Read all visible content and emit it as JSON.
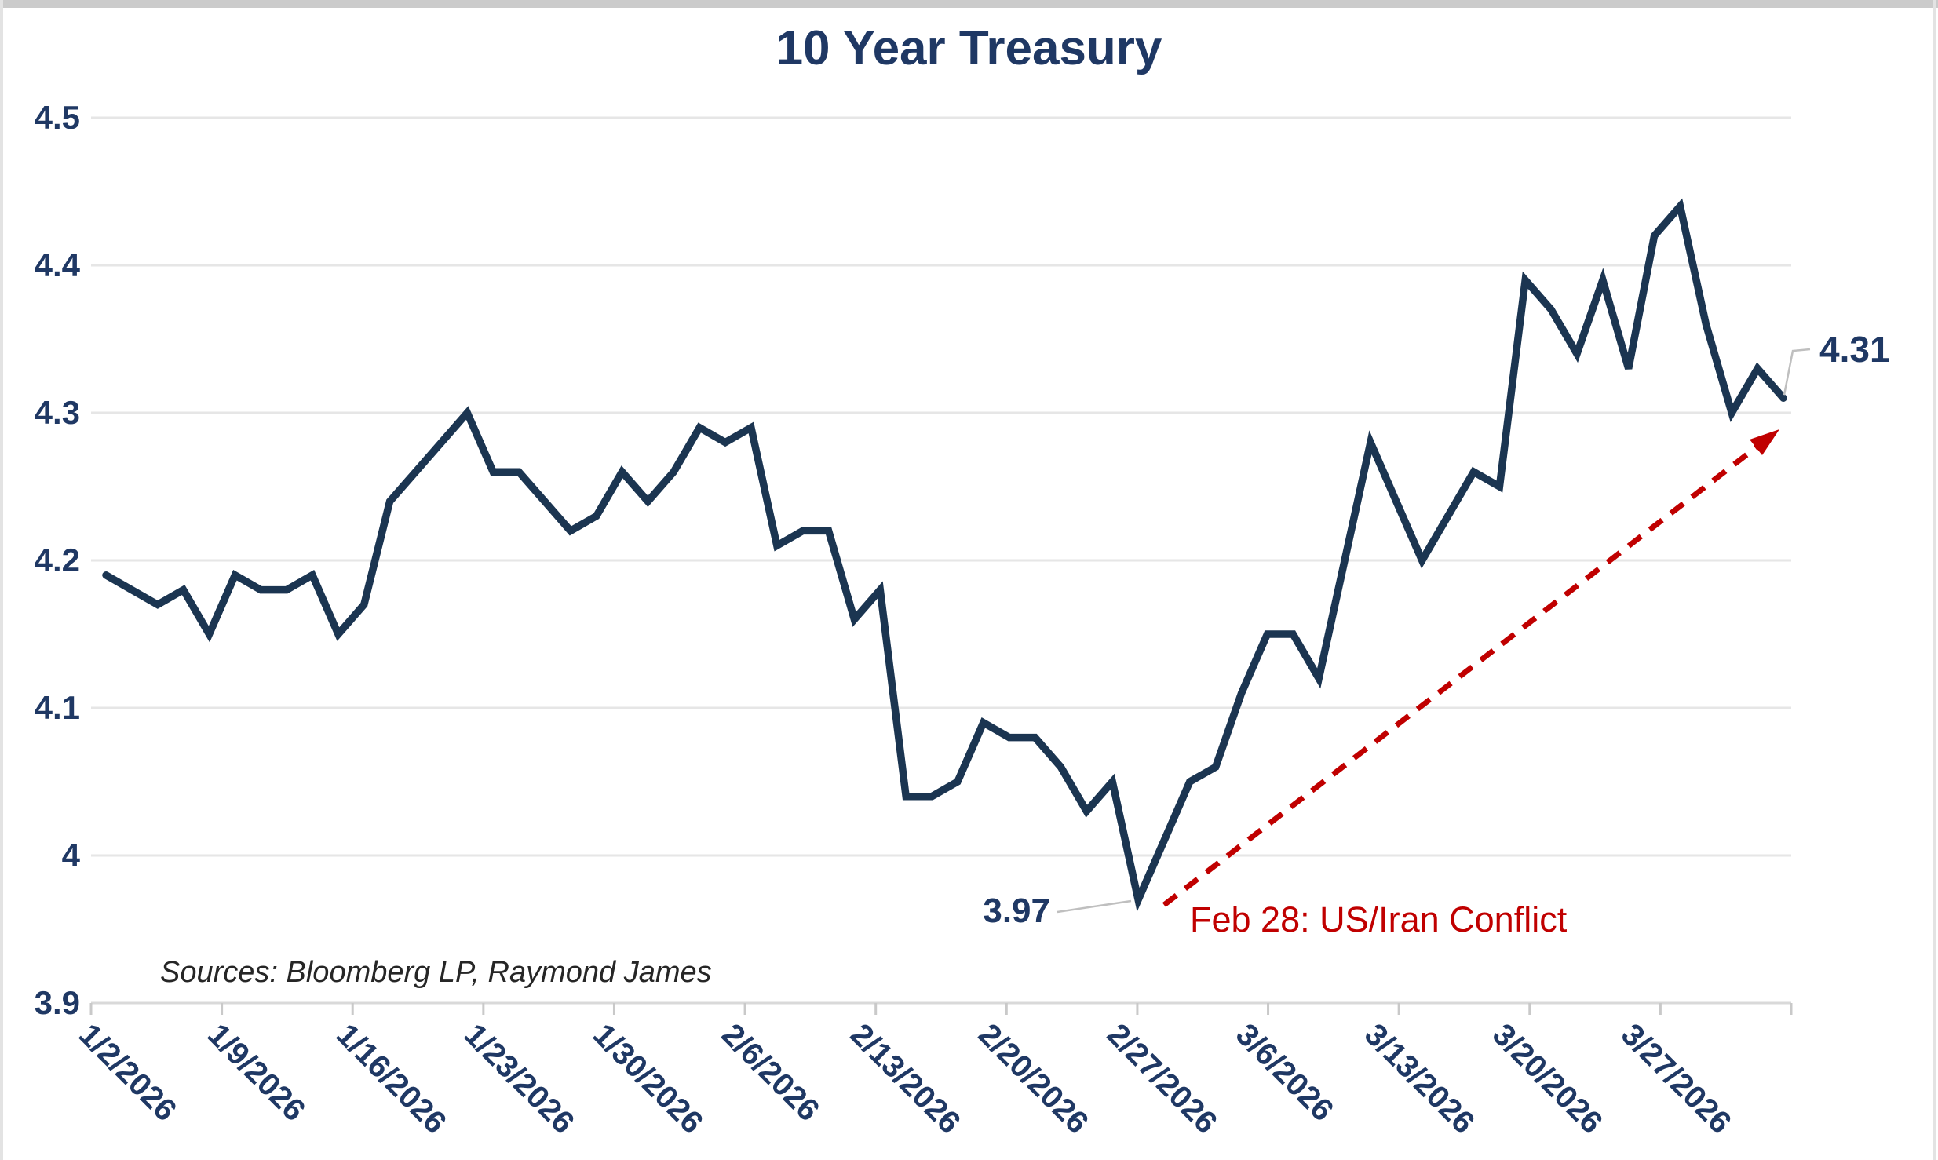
{
  "title": "10 Year Treasury",
  "source_note": "Sources: Bloomberg LP, Raymond James",
  "annotations": {
    "min_label": "3.97",
    "end_label": "4.31",
    "event_label": "Feb 28: US/Iran Conflict",
    "min_point_index": 40,
    "end_point_index": 65
  },
  "colors": {
    "line": "#1b3551",
    "text": "#1f3864",
    "event_red": "#c00000",
    "grid": "#e6e6e6",
    "axis": "#d9d9d9",
    "tick": "#c9c9c9",
    "leader": "#bfbfbf",
    "source_text": "#262626"
  },
  "chart_data": {
    "type": "line",
    "title": "10 Year Treasury",
    "xlabel": "",
    "ylabel": "",
    "ylim": [
      3.9,
      4.5
    ],
    "grid": "horizontal",
    "legend": "none",
    "y_tick_labels": [
      "4.5",
      "4.4",
      "4.3",
      "4.2",
      "4.1",
      "4",
      "3.9"
    ],
    "y_tick_values": [
      4.5,
      4.4,
      4.3,
      4.2,
      4.1,
      4.0,
      3.9
    ],
    "x_tick_labels": [
      "1/2/2026",
      "1/9/2026",
      "1/16/2026",
      "1/23/2026",
      "1/30/2026",
      "2/6/2026",
      "2/13/2026",
      "2/20/2026",
      "2/27/2026",
      "3/6/2026",
      "3/13/2026",
      "3/20/2026",
      "3/27/2026"
    ],
    "series": [
      {
        "name": "10 Year Treasury",
        "x": [
          "1/2/2026",
          "1/5/2026",
          "1/6/2026",
          "1/7/2026",
          "1/8/2026",
          "1/9/2026",
          "1/12/2026",
          "1/13/2026",
          "1/14/2026",
          "1/15/2026",
          "1/16/2026",
          "1/19/2026",
          "1/20/2026",
          "1/21/2026",
          "1/22/2026",
          "1/23/2026",
          "1/26/2026",
          "1/27/2026",
          "1/28/2026",
          "1/29/2026",
          "1/30/2026",
          "2/2/2026",
          "2/3/2026",
          "2/4/2026",
          "2/5/2026",
          "2/6/2026",
          "2/9/2026",
          "2/10/2026",
          "2/11/2026",
          "2/12/2026",
          "2/13/2026",
          "2/16/2026",
          "2/17/2026",
          "2/18/2026",
          "2/19/2026",
          "2/20/2026",
          "2/23/2026",
          "2/24/2026",
          "2/25/2026",
          "2/26/2026",
          "2/27/2026",
          "3/2/2026",
          "3/3/2026",
          "3/4/2026",
          "3/5/2026",
          "3/6/2026",
          "3/9/2026",
          "3/10/2026",
          "3/11/2026",
          "3/12/2026",
          "3/13/2026",
          "3/16/2026",
          "3/17/2026",
          "3/18/2026",
          "3/19/2026",
          "3/20/2026",
          "3/23/2026",
          "3/24/2026",
          "3/25/2026",
          "3/26/2026",
          "3/27/2026",
          "3/30/2026",
          "3/31/2026",
          "4/1/2026",
          "4/2/2026",
          "4/3/2026"
        ],
        "values": [
          4.19,
          4.18,
          4.17,
          4.18,
          4.15,
          4.19,
          4.18,
          4.18,
          4.19,
          4.15,
          4.17,
          4.24,
          4.26,
          4.28,
          4.3,
          4.26,
          4.26,
          4.24,
          4.22,
          4.23,
          4.26,
          4.24,
          4.26,
          4.29,
          4.28,
          4.29,
          4.21,
          4.22,
          4.22,
          4.16,
          4.18,
          4.04,
          4.04,
          4.05,
          4.09,
          4.08,
          4.08,
          4.06,
          4.03,
          4.05,
          3.97,
          4.01,
          4.05,
          4.06,
          4.11,
          4.15,
          4.15,
          4.12,
          4.2,
          4.28,
          4.24,
          4.2,
          4.23,
          4.26,
          4.25,
          4.39,
          4.37,
          4.34,
          4.39,
          4.33,
          4.42,
          4.44,
          4.36,
          4.3,
          4.33,
          4.31
        ]
      }
    ]
  }
}
